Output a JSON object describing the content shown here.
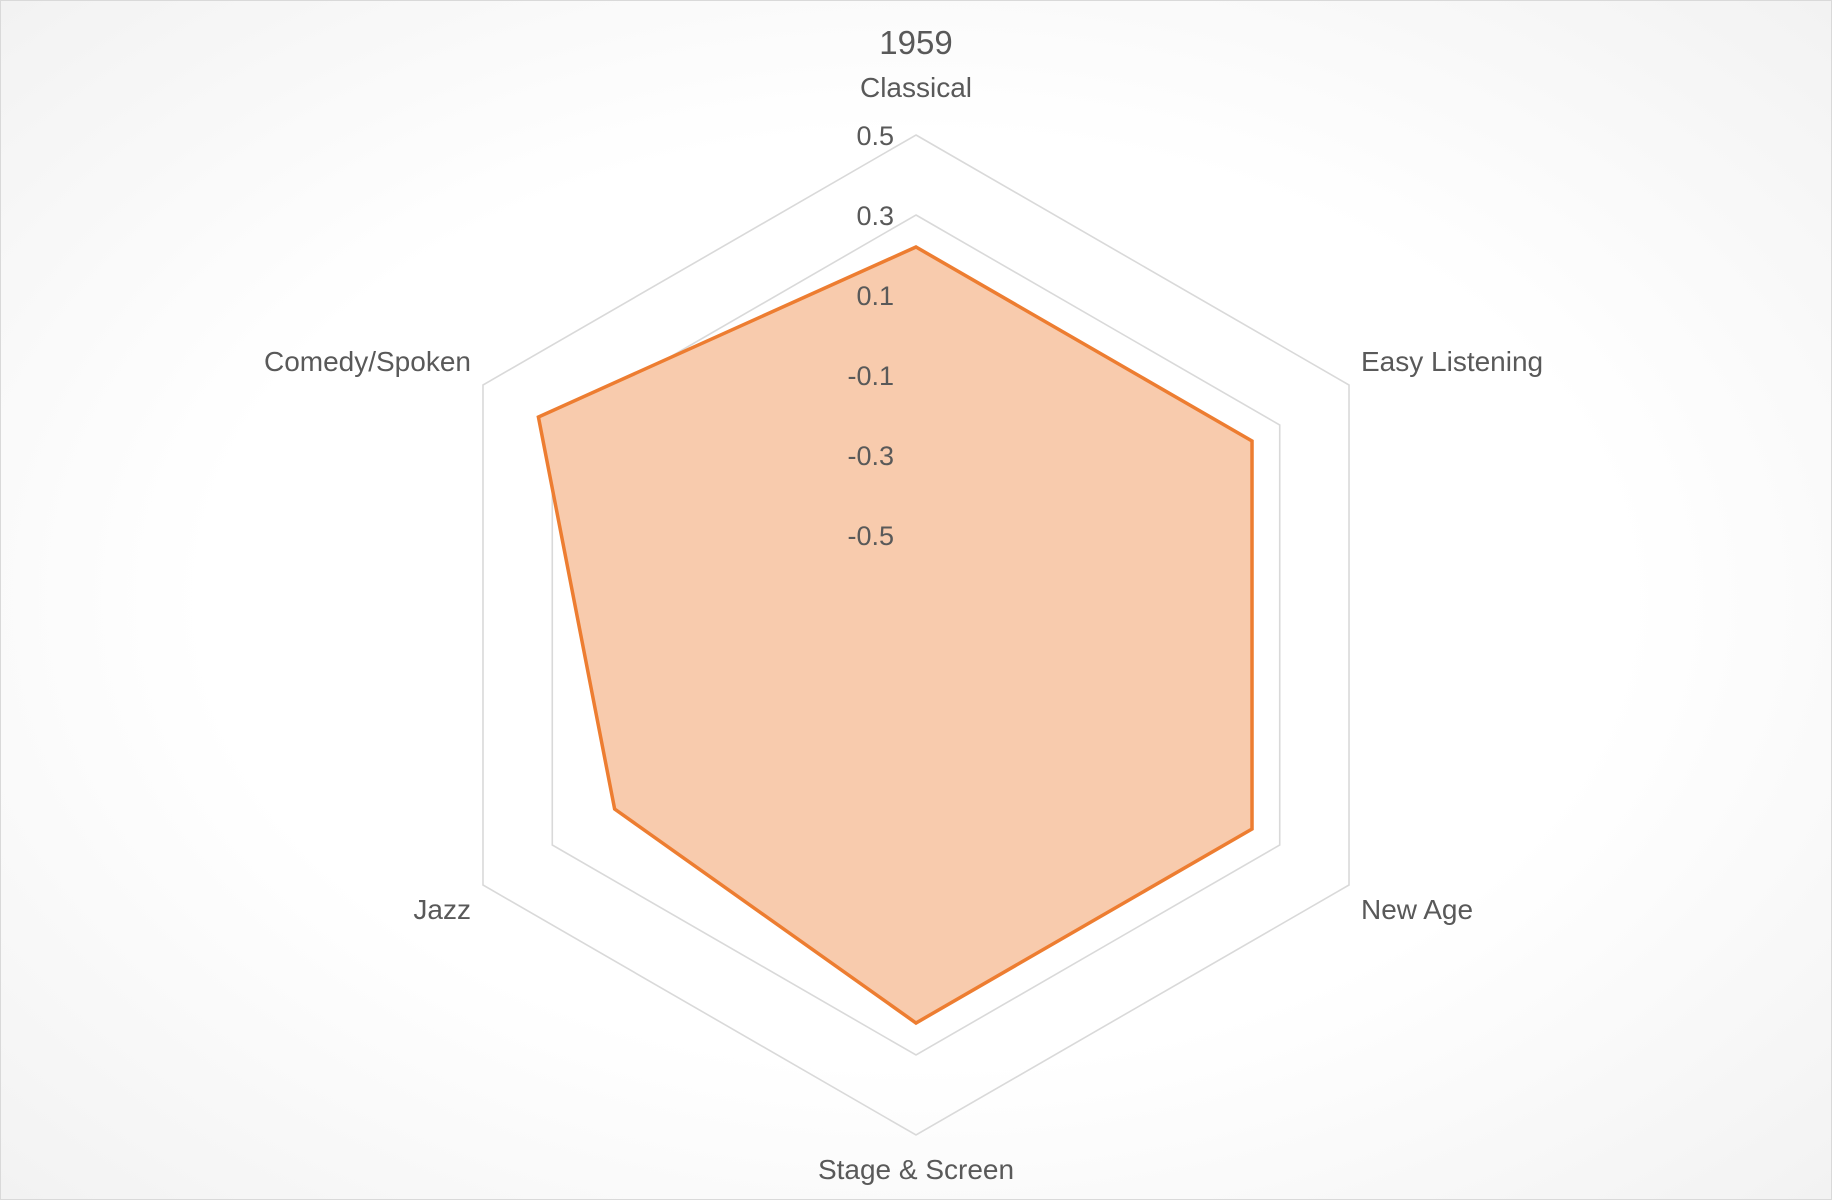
{
  "chart_data": {
    "type": "radar",
    "title": "1959",
    "categories": [
      "Classical",
      "Easy Listening",
      "New Age",
      "Stage & Screen",
      "Jazz",
      "Comedy/Spoken"
    ],
    "tick_labels": [
      "0.5",
      "0.3",
      "0.1",
      "-0.1",
      "-0.3",
      "-0.5"
    ],
    "rlim": [
      -0.5,
      0.5
    ],
    "series": [
      {
        "values": [
          0.22,
          0.22,
          0.22,
          0.22,
          0.12,
          0.34
        ],
        "color": "#ed7d31",
        "fill": "#f8cbad"
      }
    ],
    "legend": "none",
    "grid": true
  }
}
